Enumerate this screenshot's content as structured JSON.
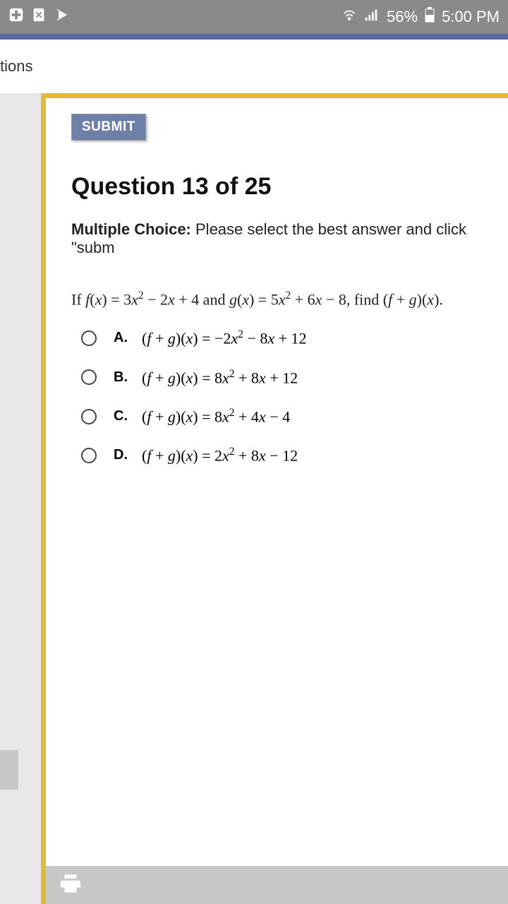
{
  "statusbar": {
    "battery_pct": "56%",
    "time": "5:00 PM"
  },
  "tab": {
    "label": "tions"
  },
  "quiz": {
    "submit_label": "SUBMIT",
    "question_heading": "Question 13 of 25",
    "mc_prefix": "Multiple Choice:",
    "mc_text": " Please select the best answer and click \"subm",
    "problem_html": "If <span class='fx'>f</span>(<span class='fx'>x</span>) = 3<span class='fx'>x</span><sup>2</sup> − 2<span class='fx'>x</span> + 4 and <span class='fx'>g</span>(<span class='fx'>x</span>) = 5<span class='fx'>x</span><sup>2</sup> + 6<span class='fx'>x</span> − 8, find (<span class='fx'>f</span> + <span class='fx'>g</span>)(<span class='fx'>x</span>).",
    "options": [
      {
        "letter": "A.",
        "html": "(<span class='fx'>f</span> + <span class='fx'>g</span>)(<span class='fx'>x</span>) = −2<span class='fx'>x</span><sup>2</sup> − 8<span class='fx'>x</span> + 12"
      },
      {
        "letter": "B.",
        "html": "(<span class='fx'>f</span> + <span class='fx'>g</span>)(<span class='fx'>x</span>) = 8<span class='fx'>x</span><sup>2</sup> + 8<span class='fx'>x</span> + 12"
      },
      {
        "letter": "C.",
        "html": "(<span class='fx'>f</span> + <span class='fx'>g</span>)(<span class='fx'>x</span>) = 8<span class='fx'>x</span><sup>2</sup> + 4<span class='fx'>x</span> − 4"
      },
      {
        "letter": "D.",
        "html": "(<span class='fx'>f</span> + <span class='fx'>g</span>)(<span class='fx'>x</span>) = 2<span class='fx'>x</span><sup>2</sup> + 8<span class='fx'>x</span> − 12"
      }
    ]
  },
  "colors": {
    "statusbar_bg": "#8a8a8a",
    "blue_bar": "#5868a3",
    "gold_border": "#e3b93b",
    "submit_bg": "#6f80a8",
    "bottom_bar": "#c8c8c8"
  }
}
